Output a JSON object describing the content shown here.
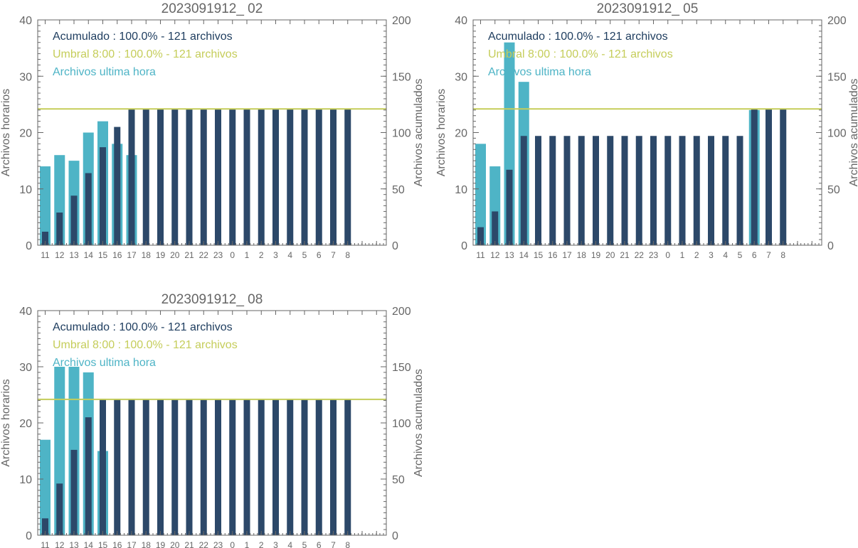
{
  "chart_data": [
    {
      "type": "bar",
      "title": "2023091912_ 02",
      "ylabel": "Archivos horarios",
      "y2label": "Archivos acumulados",
      "ylim": [
        0,
        40
      ],
      "y2lim": [
        0,
        200
      ],
      "yticks": [
        "0",
        "10",
        "20",
        "30",
        "40"
      ],
      "y2ticks": [
        "0",
        "50",
        "100",
        "150",
        "200"
      ],
      "categories": [
        "11",
        "12",
        "13",
        "14",
        "15",
        "16",
        "17",
        "18",
        "19",
        "20",
        "21",
        "22",
        "23",
        "0",
        "1",
        "2",
        "3",
        "4",
        "5",
        "6",
        "7",
        "8"
      ],
      "threshold": 121,
      "legend": [
        {
          "label": "Acumulado : 100.0% - 121 archivos",
          "color": "#1d3c5e"
        },
        {
          "label": "Umbral 8:00 : 100.0% - 121 archivos",
          "color": "#c5cd5a"
        },
        {
          "label": "Archivos ultima hora",
          "color": "#4eb4c6"
        }
      ],
      "series": [
        {
          "name": "Archivos ultima hora",
          "axis": "left",
          "color": "#4eb4c6",
          "values": [
            14,
            16,
            15,
            20,
            22,
            18,
            16,
            0,
            0,
            0,
            0,
            0,
            0,
            0,
            0,
            0,
            0,
            0,
            0,
            0,
            0,
            0
          ]
        },
        {
          "name": "Acumulado",
          "axis": "right",
          "color": "#2c4869",
          "values": [
            12,
            29,
            44,
            64,
            87,
            105,
            121,
            121,
            121,
            121,
            121,
            121,
            121,
            121,
            121,
            121,
            121,
            121,
            121,
            121,
            121,
            121
          ]
        }
      ]
    },
    {
      "type": "bar",
      "title": "2023091912_ 05",
      "ylabel": "Archivos horarios",
      "y2label": "Archivos acumulados",
      "ylim": [
        0,
        40
      ],
      "y2lim": [
        0,
        200
      ],
      "yticks": [
        "0",
        "10",
        "20",
        "30",
        "40"
      ],
      "y2ticks": [
        "0",
        "50",
        "100",
        "150",
        "200"
      ],
      "categories": [
        "11",
        "12",
        "13",
        "14",
        "15",
        "16",
        "17",
        "18",
        "19",
        "20",
        "21",
        "22",
        "23",
        "0",
        "1",
        "2",
        "3",
        "4",
        "5",
        "6",
        "7",
        "8"
      ],
      "threshold": 121,
      "legend": [
        {
          "label": "Acumulado : 100.0% - 121 archivos",
          "color": "#1d3c5e"
        },
        {
          "label": "Umbral 8:00 : 100.0% - 121 archivos",
          "color": "#c5cd5a"
        },
        {
          "label": "Archivos ultima hora",
          "color": "#4eb4c6"
        }
      ],
      "series": [
        {
          "name": "Archivos ultima hora",
          "axis": "left",
          "color": "#4eb4c6",
          "values": [
            18,
            14,
            36,
            29,
            0,
            0,
            0,
            0,
            0,
            0,
            0,
            0,
            0,
            0,
            0,
            0,
            0,
            0,
            0,
            24,
            0,
            0
          ]
        },
        {
          "name": "Acumulado",
          "axis": "right",
          "color": "#2c4869",
          "values": [
            16,
            30,
            67,
            97,
            97,
            97,
            97,
            97,
            97,
            97,
            97,
            97,
            97,
            97,
            97,
            97,
            97,
            97,
            97,
            121,
            121,
            121
          ]
        }
      ]
    },
    {
      "type": "bar",
      "title": "2023091912_ 08",
      "ylabel": "Archivos horarios",
      "y2label": "Archivos acumulados",
      "ylim": [
        0,
        40
      ],
      "y2lim": [
        0,
        200
      ],
      "yticks": [
        "0",
        "10",
        "20",
        "30",
        "40"
      ],
      "y2ticks": [
        "0",
        "50",
        "100",
        "150",
        "200"
      ],
      "categories": [
        "11",
        "12",
        "13",
        "14",
        "15",
        "16",
        "17",
        "18",
        "19",
        "20",
        "21",
        "22",
        "23",
        "0",
        "1",
        "2",
        "3",
        "4",
        "5",
        "6",
        "7",
        "8"
      ],
      "threshold": 121,
      "legend": [
        {
          "label": "Acumulado : 100.0% - 121 archivos",
          "color": "#1d3c5e"
        },
        {
          "label": "Umbral 8:00 : 100.0% - 121 archivos",
          "color": "#c5cd5a"
        },
        {
          "label": "Archivos ultima hora",
          "color": "#4eb4c6"
        }
      ],
      "series": [
        {
          "name": "Archivos ultima hora",
          "axis": "left",
          "color": "#4eb4c6",
          "values": [
            17,
            30,
            30,
            29,
            15,
            0,
            0,
            0,
            0,
            0,
            0,
            0,
            0,
            0,
            0,
            0,
            0,
            0,
            0,
            0,
            0,
            0
          ]
        },
        {
          "name": "Acumulado",
          "axis": "right",
          "color": "#2c4869",
          "values": [
            15,
            46,
            76,
            105,
            121,
            121,
            121,
            121,
            121,
            121,
            121,
            121,
            121,
            121,
            121,
            121,
            121,
            121,
            121,
            121,
            121,
            121
          ]
        }
      ]
    }
  ]
}
